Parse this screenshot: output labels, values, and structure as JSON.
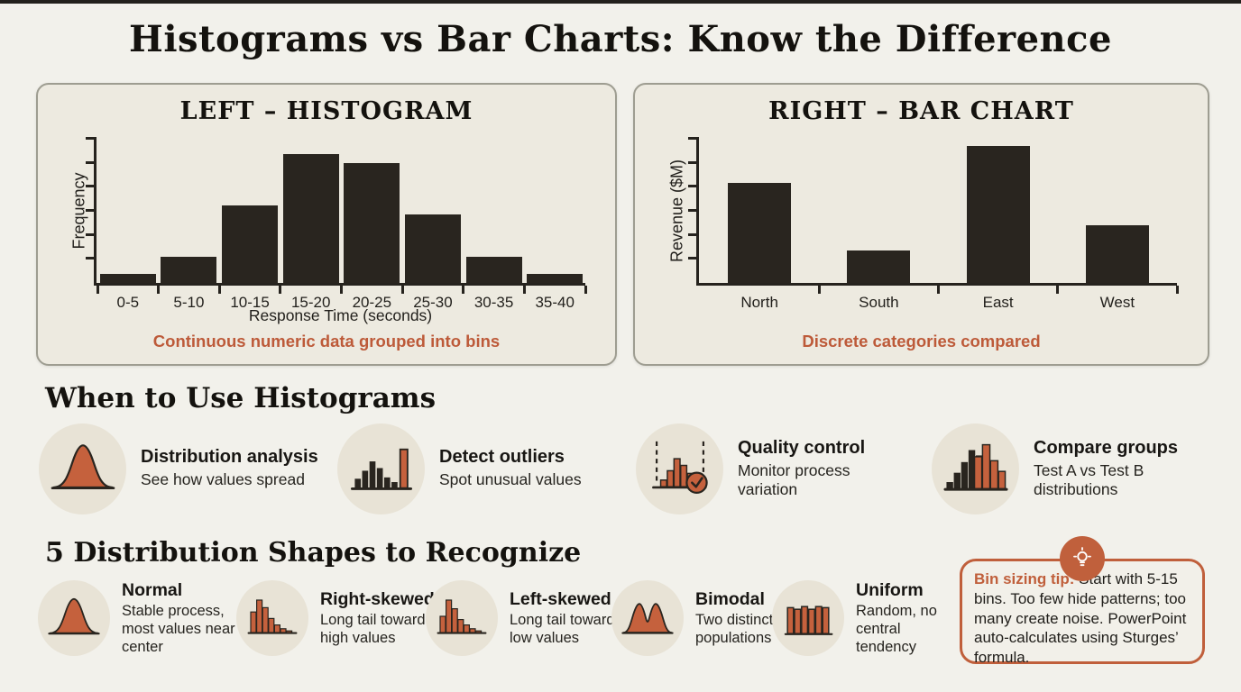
{
  "page": {
    "title": "Histograms vs Bar Charts: Know the Difference"
  },
  "colors": {
    "accent_orange": "#c05f3b",
    "bar_dark": "#29251f",
    "page_bg": "#f2f1eb",
    "panel_bg": "#edeae0",
    "icon_circle_bg": "#e8e3d6"
  },
  "chart_data": [
    {
      "type": "bar",
      "subtype": "histogram",
      "title": "LEFT – HISTOGRAM",
      "categories": [
        "0-5",
        "5-10",
        "10-15",
        "15-20",
        "20-25",
        "25-30",
        "30-35",
        "35-40"
      ],
      "values": [
        1,
        3,
        9,
        15,
        14,
        8,
        3,
        1
      ],
      "xlabel": "Response Time (seconds)",
      "ylabel": "Frequency",
      "ylim": [
        0,
        15
      ],
      "grid": false,
      "caption": "Continuous numeric data grouped into bins"
    },
    {
      "type": "bar",
      "subtype": "category-bar-chart",
      "title": "RIGHT – BAR CHART",
      "categories": [
        "North",
        "South",
        "East",
        "West"
      ],
      "values": [
        73,
        24,
        100,
        42
      ],
      "xlabel": "",
      "ylabel": "Revenue ($M)",
      "ylim": [
        0,
        100
      ],
      "grid": false,
      "caption": "Discrete categories compared"
    }
  ],
  "sections": {
    "when_to_use": {
      "title": "When to Use Histograms",
      "items": [
        {
          "icon": "bell-curve-icon",
          "title": "Distribution analysis",
          "subtitle": "See how values spread"
        },
        {
          "icon": "outlier-histogram-icon",
          "title": "Detect outliers",
          "subtitle": "Spot unusual values"
        },
        {
          "icon": "quality-control-icon",
          "title": "Quality control",
          "subtitle": "Monitor process variation"
        },
        {
          "icon": "compare-groups-icon",
          "title": "Compare groups",
          "subtitle": "Test A vs Test B distributions"
        }
      ]
    },
    "shapes": {
      "title": "5 Distribution Shapes to Recognize",
      "items": [
        {
          "icon": "bell-curve-icon",
          "title": "Normal",
          "subtitle": "Stable process, most values near center"
        },
        {
          "icon": "right-skew-icon",
          "title": "Right-skewed",
          "subtitle": "Long tail toward high values"
        },
        {
          "icon": "left-skew-icon",
          "title": "Left-skewed",
          "subtitle": "Long tail toward low values"
        },
        {
          "icon": "bimodal-icon",
          "title": "Bimodal",
          "subtitle": "Two distinct populations"
        },
        {
          "icon": "uniform-icon",
          "title": "Uniform",
          "subtitle": "Random, no central tendency"
        }
      ]
    }
  },
  "tip": {
    "icon": "lightbulb-icon",
    "label": "Bin sizing tip:",
    "text": "Start with 5-15 bins. Too few hide patterns; too many create noise. PowerPoint auto-calculates using Sturges’ formula."
  }
}
